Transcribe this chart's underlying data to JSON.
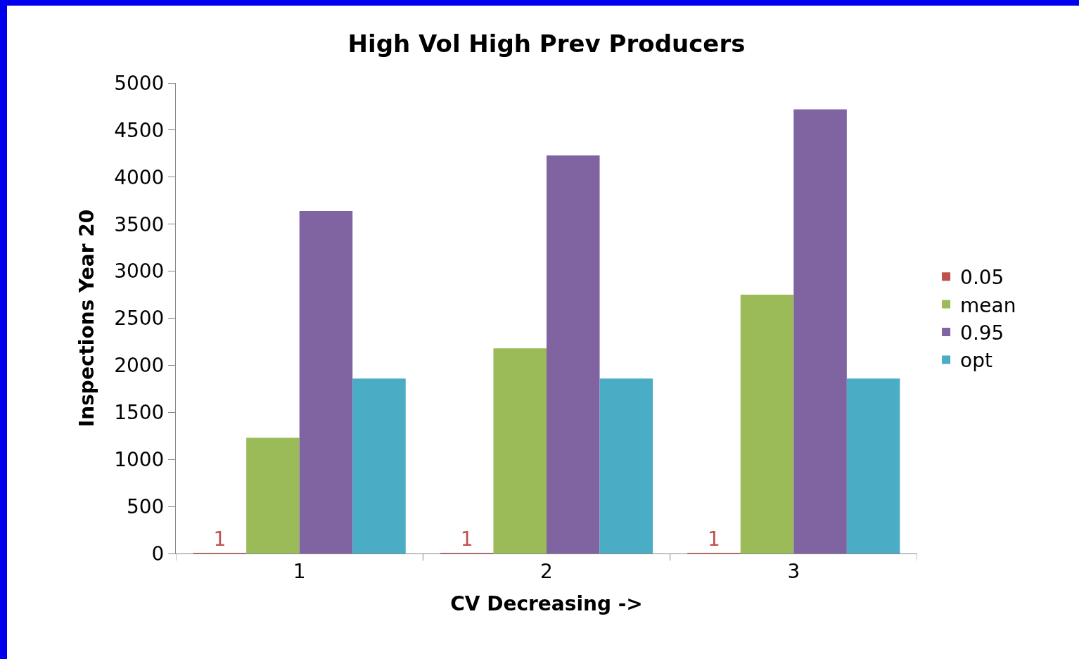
{
  "chart_data": {
    "type": "bar",
    "title": "High Vol High Prev Producers",
    "xlabel": "CV Decreasing ->",
    "ylabel": "Inspections Year 20",
    "categories": [
      "1",
      "2",
      "3"
    ],
    "series": [
      {
        "name": "0.05",
        "color": "#c0504d",
        "values": [
          1,
          1,
          1
        ],
        "value_labels": [
          "1",
          "1",
          "1"
        ]
      },
      {
        "name": "mean",
        "color": "#9bbb59",
        "values": [
          1230,
          2180,
          2750
        ]
      },
      {
        "name": "0.95",
        "color": "#8064a2",
        "values": [
          3640,
          4230,
          4720
        ]
      },
      {
        "name": "opt",
        "color": "#4bacc6",
        "values": [
          1860,
          1860,
          1860
        ]
      }
    ],
    "ylim": [
      0,
      5000
    ],
    "yticks": [
      0,
      500,
      1000,
      1500,
      2000,
      2500,
      3000,
      3500,
      4000,
      4500,
      5000
    ],
    "grid": false,
    "legend": "right"
  }
}
